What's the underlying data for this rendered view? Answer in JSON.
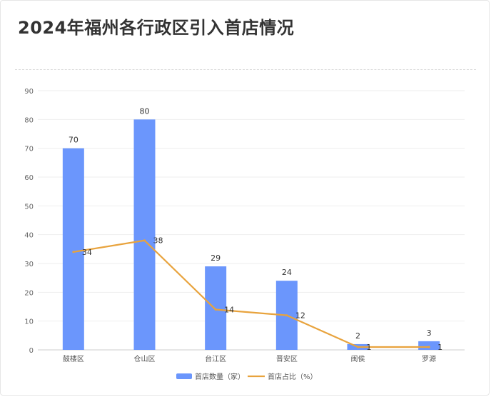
{
  "title": "2024年福州各行政区引入首店情况",
  "colors": {
    "bar": "#6b96fc",
    "line": "#e8a33d",
    "grid": "#eeeeee",
    "axis": "#cccccc",
    "text": "#666666"
  },
  "chart_data": {
    "type": "bar",
    "categories": [
      "鼓楼区",
      "仓山区",
      "台江区",
      "晋安区",
      "闽侯",
      "罗源"
    ],
    "series": [
      {
        "name": "首店数量（家）",
        "type": "bar",
        "values": [
          70,
          80,
          29,
          24,
          2,
          3
        ]
      },
      {
        "name": "首店占比（%）",
        "type": "line",
        "values": [
          34,
          38,
          14,
          12,
          1,
          1
        ]
      }
    ],
    "yticks": [
      0,
      10,
      20,
      30,
      40,
      50,
      60,
      70,
      80,
      90
    ],
    "ylim": [
      0,
      90
    ],
    "grid": true,
    "legend": "bottom-center",
    "title": "2024年福州各行政区引入首店情况"
  }
}
